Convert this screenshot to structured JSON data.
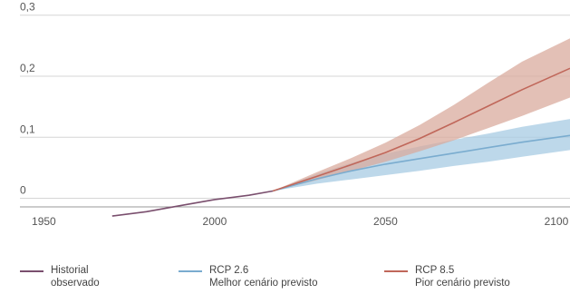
{
  "chart_data": {
    "type": "line",
    "title": "",
    "xlabel": "",
    "ylabel": "",
    "xlim": [
      1943,
      2104
    ],
    "ylim": [
      -0.02,
      0.31
    ],
    "x_ticks": [
      "1950",
      "2000",
      "2050",
      "2100"
    ],
    "x_tick_values": [
      1950,
      2000,
      2050,
      2100
    ],
    "y_ticks": [
      "0",
      "0,1",
      "0,2",
      "0,3"
    ],
    "y_tick_values": [
      0,
      0.1,
      0.2,
      0.3
    ],
    "grid": true,
    "legend_position": "bottom",
    "series": [
      {
        "key": "historical",
        "color": "#7a4f6e",
        "x": [
          1970,
          1980,
          1990,
          2000,
          2010,
          2017
        ],
        "y": [
          -0.029,
          -0.022,
          -0.012,
          -0.002,
          0.005,
          0.012
        ]
      },
      {
        "key": "rcp26",
        "color": "#7aaccf",
        "band_color": "#a7cbe3",
        "x": [
          2017,
          2030,
          2040,
          2050,
          2060,
          2070,
          2080,
          2090,
          2104
        ],
        "y": [
          0.012,
          0.032,
          0.045,
          0.056,
          0.065,
          0.074,
          0.083,
          0.092,
          0.103
        ],
        "lower": [
          0.012,
          0.024,
          0.031,
          0.038,
          0.045,
          0.053,
          0.06,
          0.068,
          0.079
        ],
        "upper": [
          0.012,
          0.04,
          0.058,
          0.073,
          0.085,
          0.096,
          0.106,
          0.117,
          0.13
        ]
      },
      {
        "key": "rcp85",
        "color": "#c0675a",
        "band_color": "#d9ab9d",
        "x": [
          2017,
          2030,
          2040,
          2050,
          2060,
          2070,
          2080,
          2090,
          2104
        ],
        "y": [
          0.012,
          0.036,
          0.055,
          0.075,
          0.098,
          0.124,
          0.151,
          0.178,
          0.213
        ],
        "lower": [
          0.012,
          0.03,
          0.045,
          0.06,
          0.077,
          0.095,
          0.115,
          0.135,
          0.165
        ],
        "upper": [
          0.012,
          0.043,
          0.066,
          0.091,
          0.12,
          0.153,
          0.189,
          0.224,
          0.262
        ]
      }
    ]
  },
  "legend": [
    {
      "key": "historical",
      "color": "#7a4f6e",
      "line1": "Historial",
      "line2": "observado"
    },
    {
      "key": "rcp26",
      "color": "#7aaccf",
      "line1": "RCP 2.6",
      "line2": "Melhor cenário previsto"
    },
    {
      "key": "rcp85",
      "color": "#c0675a",
      "line1": "RCP 8.5",
      "line2": "Pior cenário previsto"
    }
  ]
}
